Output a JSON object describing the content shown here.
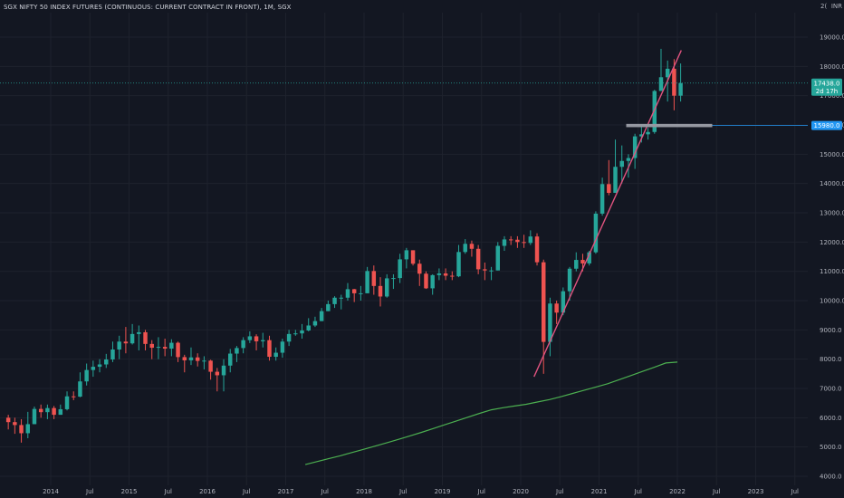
{
  "header": {
    "title": "SGX NIFTY 50 INDEX FUTURES (CONTINUOUS: CURRENT CONTRACT IN FRONT), 1M, SGX",
    "currency": "INR"
  },
  "price_axis": {
    "current_price_label": "17438.0",
    "countdown_label": "2d 17h",
    "level_label": "15980.0",
    "top_partial_label": "2("
  },
  "colors": {
    "background": "#131722",
    "up": "#26a69a",
    "down": "#ef5350",
    "sma": "#4caf50",
    "trendline": "#e0537f",
    "level_line": "#2196f3",
    "current_price": "#26a69a"
  },
  "chart_data": {
    "type": "candlestick",
    "interval": "1M",
    "title": "SGX NIFTY 50 INDEX FUTURES (CONTINUOUS: CURRENT CONTRACT IN FRONT), 1M, SGX",
    "y_ticks": [
      4000,
      5000,
      6000,
      7000,
      8000,
      9000,
      10000,
      11000,
      12000,
      13000,
      14000,
      15000,
      16000,
      17000,
      18000,
      19000
    ],
    "ylim": [
      3800,
      20600
    ],
    "x_ticks": [
      {
        "label": "2014",
        "t": 2014.0
      },
      {
        "label": "Jul",
        "t": 2014.5
      },
      {
        "label": "2015",
        "t": 2015.0
      },
      {
        "label": "Jul",
        "t": 2015.5
      },
      {
        "label": "2016",
        "t": 2016.0
      },
      {
        "label": "Jul",
        "t": 2016.5
      },
      {
        "label": "2017",
        "t": 2017.0
      },
      {
        "label": "Jul",
        "t": 2017.5
      },
      {
        "label": "2018",
        "t": 2018.0
      },
      {
        "label": "Jul",
        "t": 2018.5
      },
      {
        "label": "2019",
        "t": 2019.0
      },
      {
        "label": "Jul",
        "t": 2019.5
      },
      {
        "label": "2020",
        "t": 2020.0
      },
      {
        "label": "Jul",
        "t": 2020.5
      },
      {
        "label": "2021",
        "t": 2021.0
      },
      {
        "label": "Jul",
        "t": 2021.5
      },
      {
        "label": "2022",
        "t": 2022.0
      },
      {
        "label": "Jul",
        "t": 2022.5
      },
      {
        "label": "2023",
        "t": 2023.0
      },
      {
        "label": "Jul",
        "t": 2023.5
      }
    ],
    "start_month": "2013-06",
    "closes": [
      5850,
      5750,
      5470,
      5780,
      6300,
      6190,
      6330,
      6100,
      6290,
      6730,
      6720,
      7240,
      7630,
      7740,
      7820,
      7990,
      8330,
      8600,
      8540,
      8860,
      8920,
      8520,
      8390,
      8420,
      8360,
      8560,
      8070,
      7960,
      8060,
      7940,
      7950,
      7570,
      7450,
      7780,
      8190,
      8380,
      8650,
      8780,
      8610,
      8650,
      8080,
      8220,
      8600,
      8860,
      8880,
      8980,
      9150,
      9300,
      9640,
      9880,
      10100,
      10100,
      10390,
      10250,
      10250,
      11010,
      10500,
      10140,
      10760,
      10770,
      11410,
      11720,
      11260,
      10920,
      10420,
      10870,
      10930,
      10850,
      10830,
      11660,
      11940,
      11770,
      11070,
      11030,
      11030,
      11870,
      12090,
      12080,
      12000,
      11970,
      12190,
      11310,
      8590,
      9900,
      9590,
      10320,
      11090,
      11390,
      11270,
      11650,
      12970,
      13980,
      13680,
      14570,
      14770,
      14870,
      15610,
      15680,
      15760,
      17160,
      17630,
      17920,
      17000,
      17430
    ],
    "highs": [
      6100,
      6000,
      5950,
      6200,
      6380,
      6450,
      6450,
      6400,
      6450,
      6900,
      6900,
      7550,
      7850,
      7950,
      8000,
      8180,
      8600,
      8800,
      9100,
      9200,
      9150,
      9000,
      8650,
      8750,
      8700,
      8680,
      8600,
      8150,
      8400,
      8200,
      8100,
      7980,
      7700,
      8000,
      8350,
      8450,
      8750,
      8950,
      8850,
      8900,
      8800,
      8400,
      8700,
      9000,
      9000,
      9200,
      9400,
      9450,
      9750,
      10000,
      10150,
      10200,
      10600,
      10400,
      10500,
      11150,
      11200,
      10800,
      10900,
      10900,
      11600,
      11800,
      11700,
      11400,
      11000,
      10900,
      11100,
      11100,
      11000,
      11900,
      12100,
      12050,
      11900,
      11300,
      11150,
      12000,
      12200,
      12200,
      12200,
      12250,
      12400,
      12300,
      11400,
      10100,
      10000,
      10450,
      11150,
      11650,
      11600,
      11700,
      13050,
      14200,
      14800,
      15500,
      15300,
      15000,
      15700,
      16000,
      15900,
      17200,
      18600,
      18200,
      18250,
      18100
    ],
    "lows": [
      5600,
      5450,
      5150,
      5300,
      5800,
      6000,
      5950,
      5950,
      6100,
      6250,
      6600,
      6700,
      7100,
      7400,
      7550,
      7700,
      7900,
      8000,
      8200,
      8500,
      8300,
      8300,
      8000,
      8000,
      8100,
      8100,
      7900,
      7550,
      7800,
      7750,
      7650,
      7300,
      6900,
      6900,
      7550,
      7900,
      8200,
      8550,
      8300,
      8400,
      7950,
      7950,
      8050,
      8450,
      8800,
      8700,
      8950,
      9100,
      9400,
      9650,
      9750,
      9700,
      10000,
      9950,
      10000,
      10400,
      10200,
      9800,
      10100,
      10400,
      10600,
      11100,
      11200,
      10500,
      10400,
      10200,
      10700,
      10700,
      10700,
      10800,
      11600,
      11500,
      10900,
      10700,
      10700,
      11100,
      11700,
      11900,
      11800,
      11800,
      11900,
      11200,
      7500,
      8100,
      9200,
      9500,
      10000,
      11000,
      11000,
      11200,
      11600,
      12900,
      13600,
      13800,
      14000,
      14200,
      14500,
      15400,
      15500,
      15700,
      17300,
      16800,
      16500,
      16800
    ],
    "indicators": {
      "sma": {
        "start": 2017.25,
        "end": 2022.0,
        "values": [
          4400,
          4500,
          4600,
          4700,
          4810,
          4920,
          5030,
          5140,
          5260,
          5380,
          5500,
          5630,
          5760,
          5890,
          6020,
          6150,
          6270,
          6340,
          6400,
          6460,
          6540,
          6620,
          6720,
          6830,
          6940,
          7050,
          7160,
          7300,
          7440,
          7580,
          7720,
          7870,
          7900
        ]
      },
      "trendline": [
        {
          "t": 2020.17,
          "price": 7400
        },
        {
          "t": 2022.05,
          "price": 18550
        }
      ],
      "level_line": {
        "price": 15980,
        "from": 2021.37
      }
    }
  }
}
